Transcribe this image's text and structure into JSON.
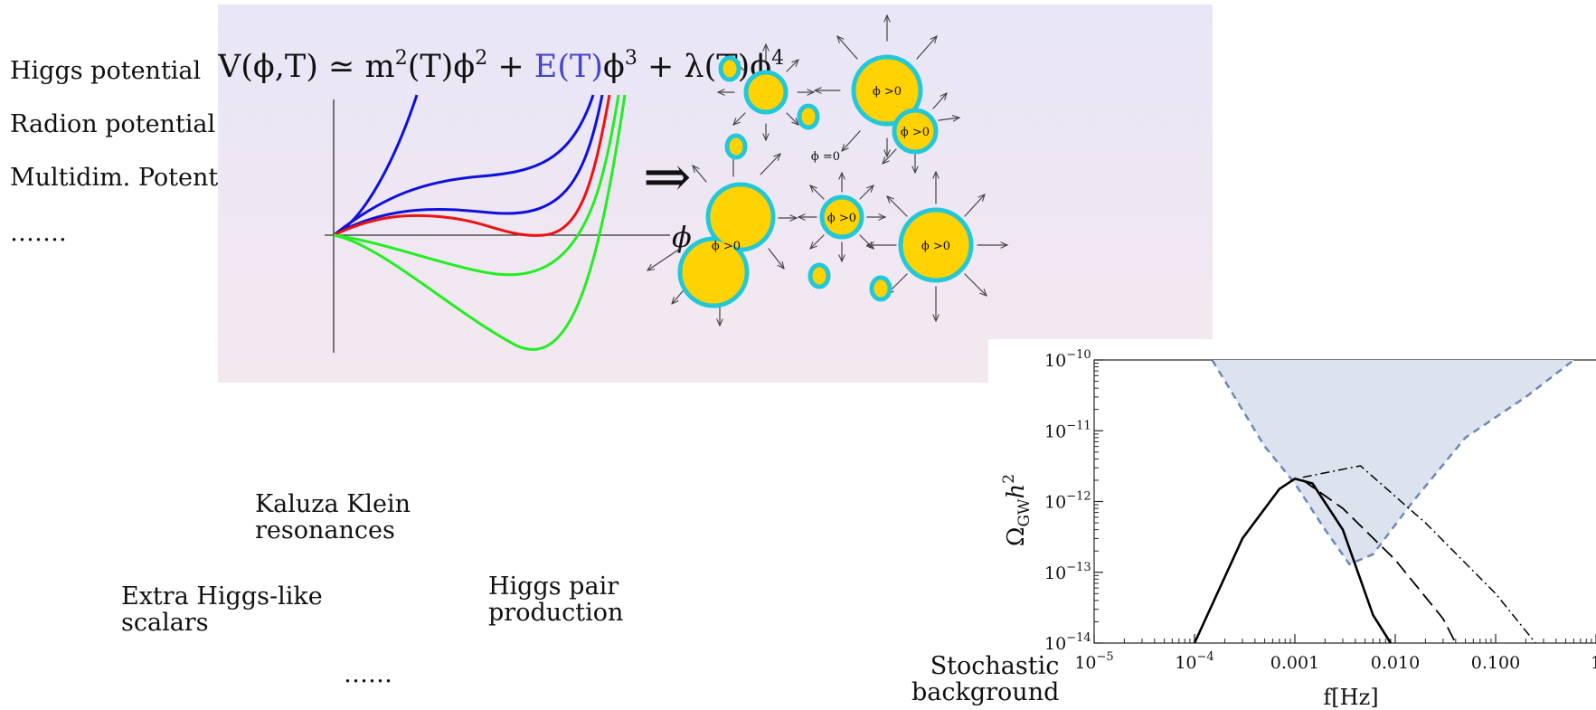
{
  "left_labels": {
    "higgs_potential": "Higgs potential",
    "radion_potential": "Radion potential",
    "multidim_potential": "Multidim. Potential",
    "ellipsis": "……."
  },
  "potential_panel": {
    "formula": {
      "lhs": "V(ϕ,T) ≃ m",
      "sup2": "2",
      "t_phi": "(T)ϕ",
      "sup2b": "2",
      "plus1": " + ",
      "e_term": "E(T)",
      "phi3": "ϕ",
      "sup3": "3",
      "lambda": " + λ(T)ϕ",
      "sup4": "4"
    },
    "axis_label": "ϕ",
    "implies": "⇒",
    "bubble_labels": {
      "phi_pos": "ϕ >0",
      "phi_zero": "ϕ =0"
    },
    "colors": {
      "bg_top": "#e8e6f7",
      "bg_bottom": "#f4e8ef",
      "blue": "#1010dd",
      "red": "#ee1111",
      "green": "#22ee22",
      "e_term": "#4444cc",
      "bubble_fill": "#ffd200",
      "bubble_ring": "#22c8d8"
    }
  },
  "signatures": {
    "kaluza_klein": [
      "Kaluza Klein",
      "resonances"
    ],
    "extra_higgs": [
      "Extra Higgs-like",
      "scalars"
    ],
    "higgs_pair": [
      "Higgs pair",
      "production"
    ],
    "ellipsis": "……",
    "stochastic": [
      "Stochastic",
      "background"
    ]
  },
  "gw_plot": {
    "ylabel": "Ω",
    "ylabel_sub": "GW",
    "ylabel_tail": "h",
    "ylabel_sup": "2",
    "xlabel": "f[Hz]",
    "y_ticks": [
      {
        "base": "10",
        "exp": "−10"
      },
      {
        "base": "10",
        "exp": "−11"
      },
      {
        "base": "10",
        "exp": "−12"
      },
      {
        "base": "10",
        "exp": "−13"
      },
      {
        "base": "10",
        "exp": "−14"
      }
    ],
    "x_ticks": [
      {
        "base": "10",
        "exp": "−5"
      },
      {
        "base": "10",
        "exp": "−4"
      },
      {
        "plain": "0.001"
      },
      {
        "plain": "0.010"
      },
      {
        "plain": "0.100"
      },
      {
        "plain": "1"
      }
    ],
    "colors": {
      "sensitivity_fill": "#dde3ee",
      "sensitivity_line": "#6a88b8",
      "curve": "#000000"
    }
  },
  "chart_data": {
    "type": "line",
    "xlabel": "f[Hz]",
    "ylabel": "Ω_GW h^2",
    "x_scale": "log",
    "y_scale": "log",
    "xlim": [
      1e-05,
      1
    ],
    "ylim": [
      1e-14,
      1e-10
    ],
    "grid": false,
    "series": [
      {
        "style": "solid",
        "x": [
          0.0001,
          0.0003,
          0.0007,
          0.001,
          0.0015,
          0.003,
          0.006,
          0.009
        ],
        "y": [
          1e-14,
          3e-13,
          1.5e-12,
          2.1e-12,
          1.8e-12,
          4e-13,
          2.5e-14,
          1e-14
        ]
      },
      {
        "style": "dashed",
        "x": [
          0.0012,
          0.003,
          0.01,
          0.03,
          0.04
        ],
        "y": [
          2e-12,
          8e-13,
          1.5e-13,
          2.2e-14,
          1e-14
        ]
      },
      {
        "style": "dash-dot",
        "x": [
          0.0012,
          0.0045,
          0.02,
          0.1,
          0.25
        ],
        "y": [
          2.2e-12,
          3.2e-12,
          5e-13,
          5e-14,
          1e-14
        ]
      },
      {
        "style": "sensitivity-dashed",
        "x": [
          0.00015,
          0.0005,
          0.001,
          0.002,
          0.0035,
          0.006,
          0.015,
          0.05,
          0.2,
          0.6
        ],
        "y": [
          1e-10,
          6e-12,
          1.8e-12,
          4e-13,
          1.3e-13,
          1.8e-13,
          1e-12,
          8e-12,
          3e-11,
          1e-10
        ]
      }
    ]
  }
}
